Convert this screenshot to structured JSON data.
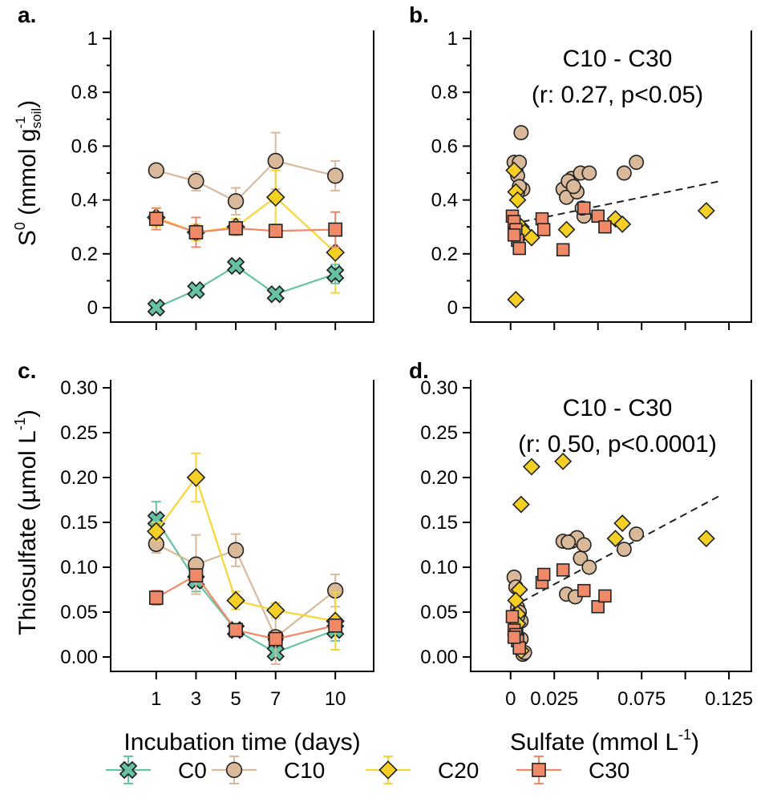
{
  "chart_data": [
    {
      "id": "a",
      "type": "line",
      "panel_label": "a.",
      "ylabel_parts": {
        "base": "S",
        "sup1": "0",
        "mid": " (mmol g",
        "sub": "soil",
        "sup2": "-1",
        "close": ")"
      },
      "xlim": [
        0,
        11
      ],
      "ylim": [
        0,
        1
      ],
      "x_ticks": [
        1,
        3,
        5,
        7,
        10
      ],
      "y_ticks": [
        0,
        0.2,
        0.4,
        0.6,
        0.8,
        1
      ],
      "y_tick_labels": [
        "0",
        "0.2",
        "0.4",
        "0.6",
        "0.8",
        "1"
      ],
      "series": [
        {
          "name": "C10",
          "x": [
            1,
            3,
            5,
            7,
            10
          ],
          "y": [
            0.51,
            0.47,
            0.395,
            0.545,
            0.49
          ],
          "err": [
            0.02,
            0.035,
            0.05,
            0.105,
            0.055
          ]
        },
        {
          "name": "C20",
          "x": [
            1,
            3,
            5,
            7,
            10
          ],
          "y": [
            0.335,
            0.28,
            0.3,
            0.41,
            0.205
          ],
          "err": [
            0.035,
            0.03,
            0.03,
            0.1,
            0.15
          ]
        },
        {
          "name": "C30",
          "x": [
            1,
            3,
            5,
            7,
            10
          ],
          "y": [
            0.33,
            0.28,
            0.295,
            0.285,
            0.29
          ],
          "err": [
            0.04,
            0.055,
            0.025,
            0.02,
            0.065
          ]
        },
        {
          "name": "C0",
          "x": [
            1,
            3,
            5,
            7,
            10
          ],
          "y": [
            0.0,
            0.065,
            0.155,
            0.05,
            0.125
          ],
          "err": [
            0.01,
            0.01,
            0.015,
            0.015,
            0.035
          ]
        }
      ]
    },
    {
      "id": "b",
      "type": "scatter",
      "panel_label": "b.",
      "annotation_line1": "C10 - C30",
      "annotation_line2": "(r: 0.27, p<0.05)",
      "xlim": [
        -0.01,
        0.13
      ],
      "ylim": [
        0,
        1
      ],
      "x_ticks": [
        0,
        0.025,
        0.075,
        0.125
      ],
      "y_ticks": [
        0,
        0.2,
        0.4,
        0.6,
        0.8,
        1
      ],
      "y_tick_labels": [
        "0",
        "0.2",
        "0.4",
        "0.6",
        "0.8",
        "1"
      ],
      "trend": {
        "x": [
          0.0,
          0.12
        ],
        "y": [
          0.31,
          0.47
        ]
      },
      "series": [
        {
          "name": "C10",
          "x": [
            0.002,
            0.003,
            0.004,
            0.005,
            0.006,
            0.007,
            0.004,
            0.005,
            0.003,
            0.03,
            0.032,
            0.035,
            0.038,
            0.04,
            0.042,
            0.045,
            0.033,
            0.036,
            0.041,
            0.065,
            0.072
          ],
          "y": [
            0.54,
            0.51,
            0.49,
            0.54,
            0.65,
            0.44,
            0.43,
            0.45,
            0.3,
            0.44,
            0.41,
            0.48,
            0.43,
            0.5,
            0.34,
            0.5,
            0.47,
            0.45,
            0.37,
            0.5,
            0.54
          ]
        },
        {
          "name": "C20",
          "x": [
            0.002,
            0.003,
            0.004,
            0.006,
            0.008,
            0.012,
            0.032,
            0.06,
            0.064,
            0.112,
            0.003,
            0.004
          ],
          "y": [
            0.51,
            0.43,
            0.31,
            0.3,
            0.28,
            0.26,
            0.29,
            0.33,
            0.31,
            0.36,
            0.03,
            0.4
          ]
        },
        {
          "name": "C30",
          "x": [
            0.001,
            0.002,
            0.003,
            0.004,
            0.005,
            0.018,
            0.019,
            0.03,
            0.042,
            0.05,
            0.054,
            0.002
          ],
          "y": [
            0.34,
            0.32,
            0.29,
            0.25,
            0.22,
            0.33,
            0.29,
            0.215,
            0.37,
            0.34,
            0.3,
            0.27
          ]
        }
      ]
    },
    {
      "id": "c",
      "type": "line",
      "panel_label": "c.",
      "ylabel_parts": {
        "base": "Thiosulfate (µmol L",
        "sup": "-1",
        "close": ")"
      },
      "xlabel": "Incubation time (days)",
      "xlim": [
        0,
        11
      ],
      "ylim": [
        0,
        0.3
      ],
      "x_ticks": [
        1,
        3,
        5,
        7,
        10
      ],
      "x_tick_labels": [
        "1",
        "3",
        "5",
        "7",
        "10"
      ],
      "y_ticks": [
        0,
        0.05,
        0.1,
        0.15,
        0.2,
        0.25,
        0.3
      ],
      "y_tick_labels": [
        "0.00",
        "0.05",
        "0.10",
        "0.15",
        "0.20",
        "0.25",
        "0.30"
      ],
      "series": [
        {
          "name": "C0",
          "x": [
            1,
            3,
            5,
            7,
            10
          ],
          "y": [
            0.153,
            0.085,
            0.03,
            0.005,
            0.03
          ],
          "err": [
            0.02,
            0.012,
            0.005,
            0.005,
            0.012
          ]
        },
        {
          "name": "C10",
          "x": [
            1,
            3,
            5,
            7,
            10
          ],
          "y": [
            0.126,
            0.103,
            0.119,
            0.022,
            0.074
          ],
          "err": [
            0.01,
            0.033,
            0.018,
            0.03,
            0.018
          ]
        },
        {
          "name": "C20",
          "x": [
            1,
            3,
            5,
            7,
            10
          ],
          "y": [
            0.14,
            0.2,
            0.063,
            0.052,
            0.04
          ],
          "err": [
            0.01,
            0.027,
            0.01,
            0.008,
            0.032
          ]
        },
        {
          "name": "C30",
          "x": [
            1,
            3,
            5,
            7,
            10
          ],
          "y": [
            0.066,
            0.091,
            0.03,
            0.02,
            0.035
          ],
          "err": [
            0.008,
            0.005,
            0.005,
            0.005,
            0.006
          ]
        }
      ]
    },
    {
      "id": "d",
      "type": "scatter",
      "panel_label": "d.",
      "annotation_line1": "C10 - C30",
      "annotation_line2": "(r: 0.50, p<0.0001)",
      "xlabel_parts": {
        "base": "Sulfate (mmol L",
        "sup": "-1",
        "close": ")"
      },
      "xlim": [
        -0.01,
        0.13
      ],
      "ylim": [
        0,
        0.3
      ],
      "x_ticks": [
        0,
        0.025,
        0.075,
        0.125
      ],
      "x_tick_labels": [
        "0",
        "0.025",
        "0.075",
        "0.125"
      ],
      "y_ticks": [
        0,
        0.05,
        0.1,
        0.15,
        0.2,
        0.25,
        0.3
      ],
      "y_tick_labels": [
        "0.00",
        "0.05",
        "0.10",
        "0.15",
        "0.20",
        "0.25",
        "0.30"
      ],
      "trend": {
        "x": [
          0.0,
          0.12
        ],
        "y": [
          0.055,
          0.18
        ]
      },
      "series": [
        {
          "name": "C10",
          "x": [
            0.002,
            0.003,
            0.004,
            0.005,
            0.006,
            0.007,
            0.003,
            0.004,
            0.006,
            0.008,
            0.03,
            0.032,
            0.035,
            0.038,
            0.04,
            0.042,
            0.045,
            0.033,
            0.037,
            0.065,
            0.072
          ],
          "y": [
            0.089,
            0.078,
            0.055,
            0.05,
            0.04,
            0.003,
            0.03,
            0.045,
            0.02,
            0.005,
            0.129,
            0.07,
            0.129,
            0.133,
            0.11,
            0.125,
            0.1,
            0.128,
            0.067,
            0.12,
            0.137
          ]
        },
        {
          "name": "C20",
          "x": [
            0.006,
            0.012,
            0.03,
            0.005,
            0.06,
            0.064,
            0.112,
            0.003,
            0.004,
            0.006,
            0.003,
            0.004
          ],
          "y": [
            0.17,
            0.212,
            0.218,
            0.075,
            0.132,
            0.149,
            0.132,
            0.063,
            0.048,
            0.007,
            0.025,
            0.037
          ]
        },
        {
          "name": "C30",
          "x": [
            0.001,
            0.002,
            0.003,
            0.004,
            0.005,
            0.018,
            0.019,
            0.03,
            0.042,
            0.05,
            0.054,
            0.002
          ],
          "y": [
            0.045,
            0.03,
            0.025,
            0.018,
            0.01,
            0.083,
            0.092,
            0.097,
            0.074,
            0.056,
            0.068,
            0.022
          ]
        }
      ]
    }
  ],
  "legend": [
    {
      "name": "C0",
      "label": "C0"
    },
    {
      "name": "C10",
      "label": "C10"
    },
    {
      "name": "C20",
      "label": "C20"
    },
    {
      "name": "C30",
      "label": "C30"
    }
  ],
  "styles": {
    "C0": {
      "color": "#66c2a5",
      "fill": "#66c2a5",
      "marker": "x-cross"
    },
    "C10": {
      "color": "#d9b99a",
      "fill": "#d9b99a",
      "marker": "circle"
    },
    "C20": {
      "color": "#f7d633",
      "fill": "#f5cf23",
      "marker": "diamond"
    },
    "C30": {
      "color": "#f08968",
      "fill": "#f08968",
      "marker": "square"
    }
  }
}
